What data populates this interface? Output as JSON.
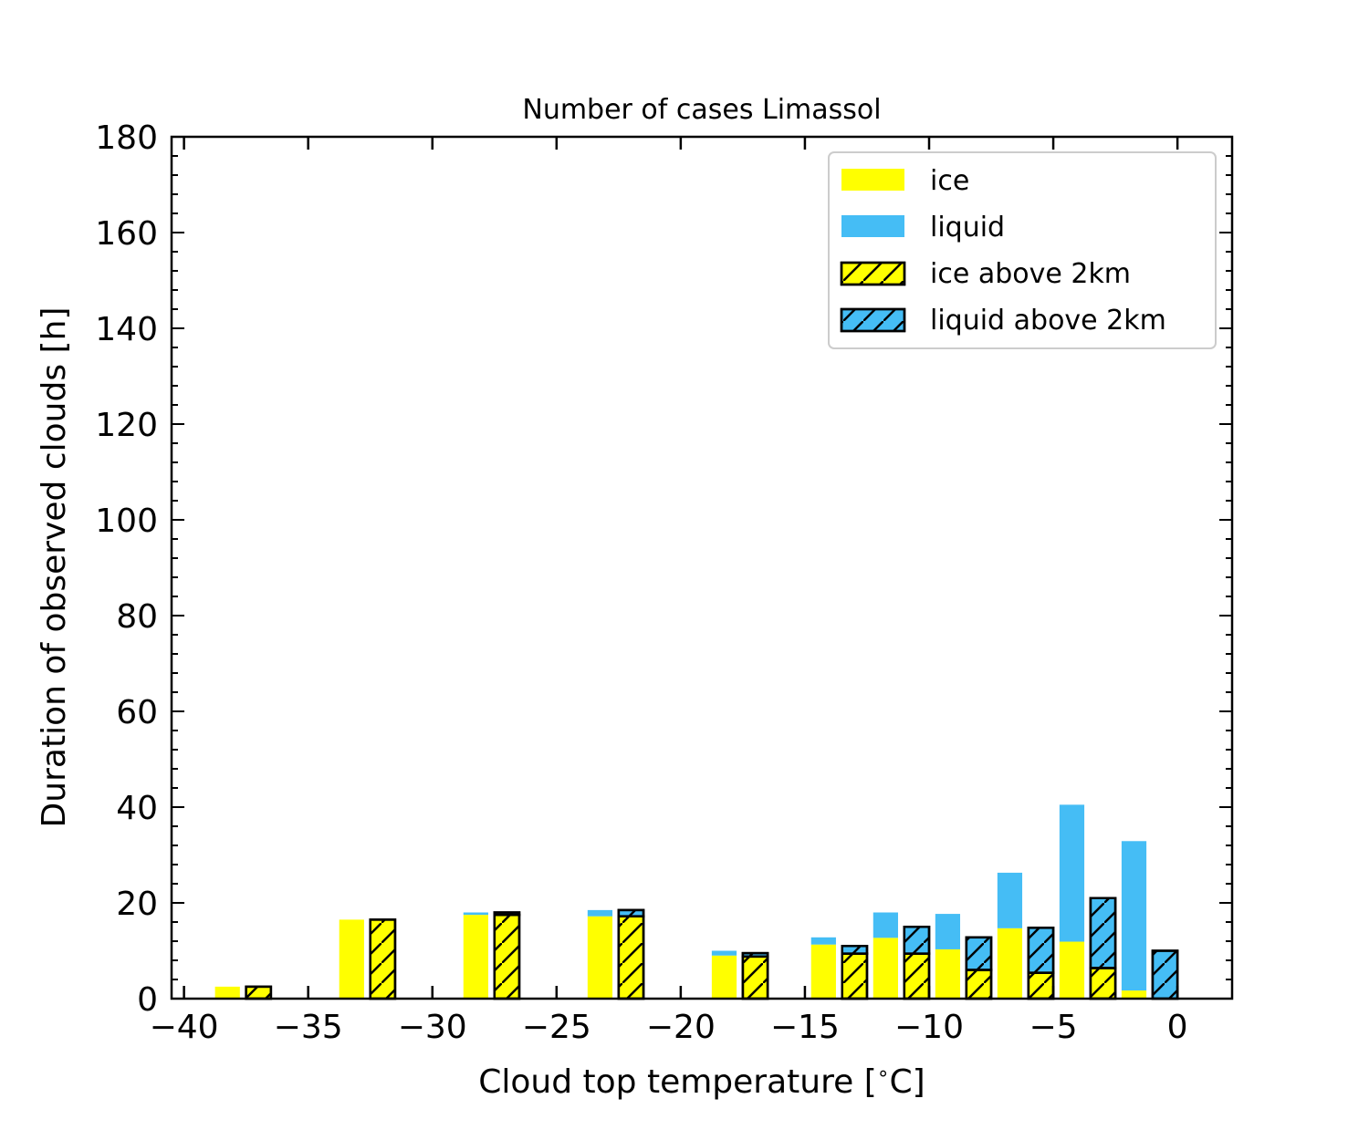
{
  "chart_data": {
    "type": "bar",
    "title": "Number of cases Limassol",
    "xlabel": "Cloud top temperature [$^\\circ$C]",
    "xlabel_prefix": "Cloud top temperature [",
    "xlabel_unit": "C]",
    "ylabel": "Duration of observed clouds [h]",
    "xlim": [
      -40.5,
      2.2
    ],
    "ylim": [
      0,
      180
    ],
    "x_ticks": [
      -40,
      -35,
      -30,
      -25,
      -20,
      -15,
      -10,
      -5,
      0
    ],
    "x_tick_labels": [
      "−40",
      "−35",
      "−30",
      "−25",
      "−20",
      "−15",
      "−10",
      "−5",
      "0"
    ],
    "y_ticks": [
      0,
      20,
      40,
      60,
      80,
      100,
      120,
      140,
      160,
      180
    ],
    "y_tick_labels": [
      "0",
      "20",
      "40",
      "60",
      "80",
      "100",
      "120",
      "140",
      "160",
      "180"
    ],
    "legend_position": "top-right",
    "colors": {
      "ice": "#ffff00",
      "liquid": "#45bdf5",
      "edge": "#000000"
    },
    "bar_width": 1.0,
    "groups": [
      {
        "x": -37.5,
        "ice": 2.5,
        "liquid": 0.0,
        "ice_above_2km": 2.5,
        "liquid_above_2km": 0.0
      },
      {
        "x": -32.5,
        "ice": 16.5,
        "liquid": 0.0,
        "ice_above_2km": 16.5,
        "liquid_above_2km": 0.0
      },
      {
        "x": -27.5,
        "ice": 17.5,
        "liquid": 0.5,
        "ice_above_2km": 17.5,
        "liquid_above_2km": 0.5
      },
      {
        "x": -22.5,
        "ice": 17.2,
        "liquid": 1.3,
        "ice_above_2km": 17.2,
        "liquid_above_2km": 1.3
      },
      {
        "x": -17.5,
        "ice": 9.0,
        "liquid": 1.0,
        "ice_above_2km": 8.8,
        "liquid_above_2km": 0.7
      },
      {
        "x": -13.5,
        "ice": 11.3,
        "liquid": 1.5,
        "ice_above_2km": 9.4,
        "liquid_above_2km": 1.6
      },
      {
        "x": -11.0,
        "ice": 12.7,
        "liquid": 5.3,
        "ice_above_2km": 9.4,
        "liquid_above_2km": 5.6
      },
      {
        "x": -8.5,
        "ice": 10.3,
        "liquid": 7.4,
        "ice_above_2km": 6.0,
        "liquid_above_2km": 6.8
      },
      {
        "x": -6.0,
        "ice": 14.7,
        "liquid": 11.6,
        "ice_above_2km": 5.4,
        "liquid_above_2km": 9.4
      },
      {
        "x": -3.5,
        "ice": 11.9,
        "liquid": 28.6,
        "ice_above_2km": 6.4,
        "liquid_above_2km": 14.6
      },
      {
        "x": -1.0,
        "ice": 1.7,
        "liquid": 31.2,
        "ice_above_2km": 0.0,
        "liquid_above_2km": 10.0
      }
    ],
    "series": [
      {
        "name": "ice"
      },
      {
        "name": "liquid"
      },
      {
        "name": "ice above 2km"
      },
      {
        "name": "liquid above 2km"
      }
    ]
  }
}
